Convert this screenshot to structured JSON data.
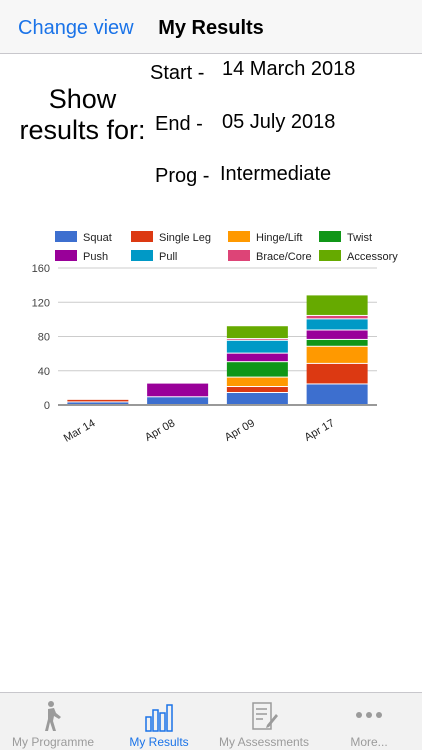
{
  "navbar": {
    "back_label": "Change view",
    "title": "My Results"
  },
  "form": {
    "show_label_line1": "Show",
    "show_label_line2": "results for:",
    "start_label": "Start -",
    "start_value": "14 March 2018",
    "end_label": "End -",
    "end_value": "05 July 2018",
    "prog_label": "Prog -",
    "prog_value": "Intermediate"
  },
  "chart_data": {
    "type": "bar",
    "stacked": true,
    "categories": [
      "Mar 14",
      "Apr 08",
      "Apr 09",
      "Apr 17"
    ],
    "ylim": [
      0,
      160
    ],
    "yticks": [
      0,
      40,
      80,
      120,
      160
    ],
    "legend_position": "top",
    "series": [
      {
        "name": "Squat",
        "color": "#3d6fcf",
        "values": [
          3,
          9,
          14,
          24
        ]
      },
      {
        "name": "Single Leg",
        "color": "#dc3912",
        "values": [
          3,
          0,
          7,
          24
        ]
      },
      {
        "name": "Hinge/Lift",
        "color": "#ff9900",
        "values": [
          0,
          0,
          11,
          20
        ]
      },
      {
        "name": "Twist",
        "color": "#109618",
        "values": [
          0,
          0,
          18,
          8
        ]
      },
      {
        "name": "Push",
        "color": "#990099",
        "values": [
          0,
          16,
          10,
          11
        ]
      },
      {
        "name": "Pull",
        "color": "#0099c6",
        "values": [
          0,
          0,
          15,
          13
        ]
      },
      {
        "name": "Brace/Core",
        "color": "#dd4477",
        "values": [
          0,
          0,
          2,
          4
        ]
      },
      {
        "name": "Accessory",
        "color": "#66aa00",
        "values": [
          0,
          0,
          15,
          24
        ]
      }
    ]
  },
  "tabbar": {
    "tabs": [
      {
        "label": "My Programme",
        "active": false
      },
      {
        "label": "My Results",
        "active": true
      },
      {
        "label": "My Assessments",
        "active": false
      },
      {
        "label": "More...",
        "active": false
      }
    ]
  },
  "colors": {
    "accent": "#1a73e8",
    "inactive": "#9b9b9b"
  }
}
